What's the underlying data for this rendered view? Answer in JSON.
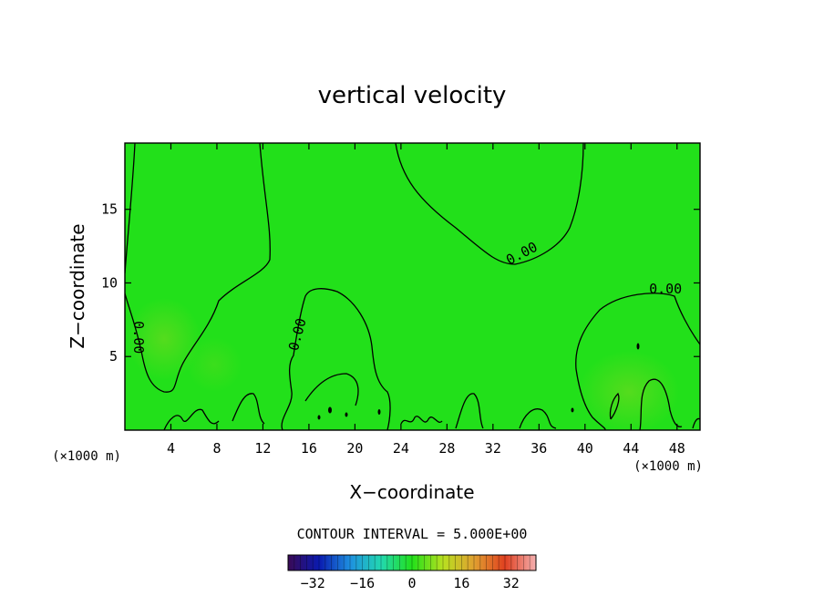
{
  "chart_data": {
    "type": "contour",
    "title": "vertical velocity",
    "xlabel": "X−coordinate",
    "ylabel": "Z−coordinate",
    "x_unit_left": "(×1000 m)",
    "x_unit_right": "(×1000 m)",
    "xlim": [
      0,
      50
    ],
    "ylim": [
      0,
      19.5
    ],
    "x_ticks": [
      4,
      8,
      12,
      16,
      20,
      24,
      28,
      32,
      36,
      40,
      44,
      48
    ],
    "y_ticks": [
      5,
      10,
      15
    ],
    "field_color": "#22e01a",
    "contour_labels": [
      {
        "text": "0.00",
        "x": 34.5,
        "y": 12.0,
        "angle": -28
      },
      {
        "text": "0.00",
        "x": 47.0,
        "y": 9.6,
        "angle": 0
      },
      {
        "text": "0.00",
        "x": 1.2,
        "y": 6.3,
        "angle": 90
      },
      {
        "text": "0.00",
        "x": 15.0,
        "y": 6.5,
        "angle": -75
      }
    ],
    "contour_interval_text": "CONTOUR INTERVAL = 5.000E+00",
    "colorbar": {
      "min": -40,
      "max": 40,
      "ticks": [
        -32,
        -16,
        0,
        16,
        32
      ],
      "tick_labels": [
        "−32",
        "−16",
        "0",
        "16",
        "32"
      ],
      "colormap_stops": [
        "#3a0a55",
        "#0a1ab0",
        "#1e90e0",
        "#22d8b0",
        "#22e01a",
        "#b8e020",
        "#e0a030",
        "#e04020",
        "#f4b0b0"
      ]
    }
  }
}
